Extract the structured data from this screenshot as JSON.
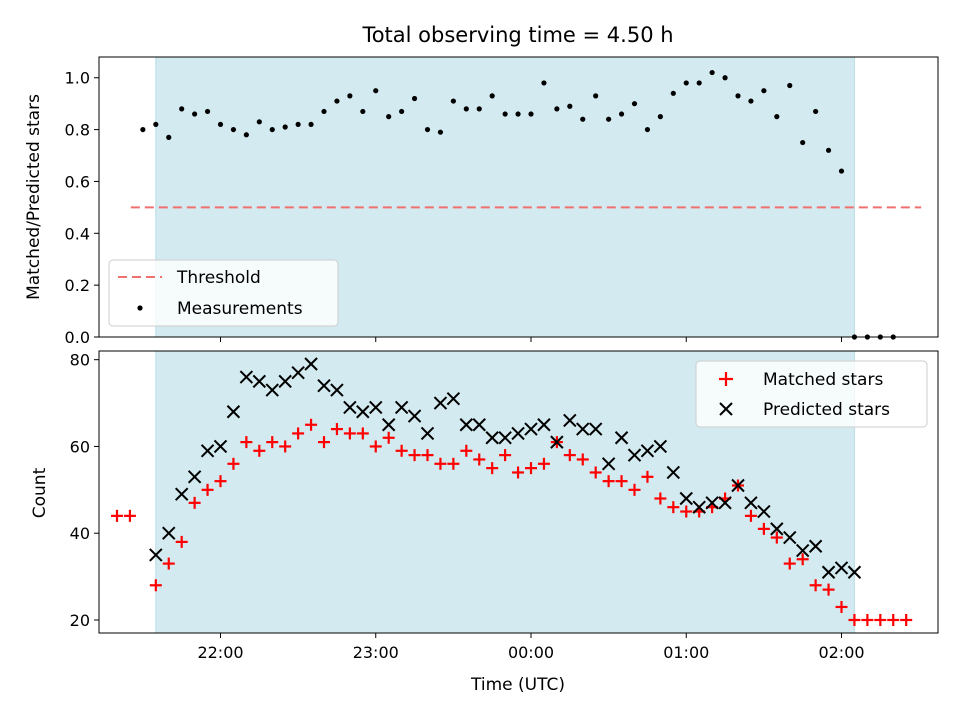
{
  "chart_data": [
    {
      "type": "scatter",
      "title": "Total observing time = 4.50 h",
      "xlabel": "",
      "ylabel": "Matched/Predicted stars",
      "ylim": [
        0,
        1.08
      ],
      "yticks": [
        0.0,
        0.2,
        0.4,
        0.6,
        0.8,
        1.0
      ],
      "yticklabels": [
        "0.0",
        "0.2",
        "0.4",
        "0.6",
        "0.8",
        "1.0"
      ],
      "shaded_span": [
        "21:35",
        "02:05"
      ],
      "threshold": {
        "name": "Threshold",
        "value": 0.5,
        "x_start": "21:35",
        "x_end": "02:25",
        "color": "#f07070"
      },
      "series": [
        {
          "name": "Measurements",
          "color": "#000000",
          "x": [
            "21:30",
            "21:35",
            "21:40",
            "21:45",
            "21:50",
            "21:55",
            "22:00",
            "22:05",
            "22:10",
            "22:15",
            "22:20",
            "22:25",
            "22:30",
            "22:35",
            "22:40",
            "22:45",
            "22:50",
            "22:55",
            "23:00",
            "23:05",
            "23:10",
            "23:15",
            "23:20",
            "23:25",
            "23:30",
            "23:35",
            "23:40",
            "23:45",
            "23:50",
            "23:55",
            "00:00",
            "00:05",
            "00:10",
            "00:15",
            "00:20",
            "00:25",
            "00:30",
            "00:35",
            "00:40",
            "00:45",
            "00:50",
            "00:55",
            "01:00",
            "01:05",
            "01:10",
            "01:15",
            "01:20",
            "01:25",
            "01:30",
            "01:35",
            "01:40",
            "01:45",
            "01:50",
            "01:55",
            "02:00",
            "02:05",
            "02:10",
            "02:15",
            "02:20"
          ],
          "values": [
            0.8,
            0.82,
            0.77,
            0.88,
            0.86,
            0.87,
            0.82,
            0.8,
            0.78,
            0.83,
            0.8,
            0.81,
            0.82,
            0.82,
            0.87,
            0.91,
            0.93,
            0.87,
            0.95,
            0.85,
            0.87,
            0.92,
            0.8,
            0.79,
            0.91,
            0.88,
            0.88,
            0.93,
            0.86,
            0.86,
            0.86,
            0.98,
            0.88,
            0.89,
            0.84,
            0.93,
            0.84,
            0.86,
            0.9,
            0.8,
            0.85,
            0.94,
            0.98,
            0.98,
            1.02,
            1.0,
            0.93,
            0.91,
            0.95,
            0.85,
            0.97,
            0.75,
            0.87,
            0.72,
            0.64,
            0.0,
            0.0,
            0.0,
            0.0
          ]
        }
      ],
      "legend": {
        "placement": "lower-left",
        "entries": [
          "Threshold",
          "Measurements"
        ]
      }
    },
    {
      "type": "scatter",
      "title": "",
      "xlabel": "Time (UTC)",
      "ylabel": "Count",
      "ylim": [
        17,
        82
      ],
      "yticks": [
        20,
        40,
        60,
        80
      ],
      "yticklabels": [
        "20",
        "40",
        "60",
        "80"
      ],
      "xticks": [
        "22:00",
        "23:00",
        "00:00",
        "01:00",
        "02:00"
      ],
      "xticklabels": [
        "22:00",
        "23:00",
        "00:00",
        "01:00",
        "02:00"
      ],
      "shaded_span": [
        "21:35",
        "02:05"
      ],
      "series": [
        {
          "name": "Matched stars",
          "marker": "plus",
          "color": "#ff0000",
          "x": [
            "21:20",
            "21:25",
            "21:35",
            "21:40",
            "21:45",
            "21:50",
            "21:55",
            "22:00",
            "22:05",
            "22:10",
            "22:15",
            "22:20",
            "22:25",
            "22:30",
            "22:35",
            "22:40",
            "22:45",
            "22:50",
            "22:55",
            "23:00",
            "23:05",
            "23:10",
            "23:15",
            "23:20",
            "23:25",
            "23:30",
            "23:35",
            "23:40",
            "23:45",
            "23:50",
            "23:55",
            "00:00",
            "00:05",
            "00:10",
            "00:15",
            "00:20",
            "00:25",
            "00:30",
            "00:35",
            "00:40",
            "00:45",
            "00:50",
            "00:55",
            "01:00",
            "01:05",
            "01:10",
            "01:15",
            "01:20",
            "01:25",
            "01:30",
            "01:35",
            "01:40",
            "01:45",
            "01:50",
            "01:55",
            "02:00",
            "02:05",
            "02:10",
            "02:15",
            "02:20",
            "02:25"
          ],
          "values": [
            44,
            44,
            28,
            33,
            38,
            47,
            50,
            52,
            56,
            61,
            59,
            61,
            60,
            63,
            65,
            61,
            64,
            63,
            63,
            60,
            62,
            59,
            58,
            58,
            56,
            56,
            59,
            57,
            55,
            58,
            54,
            55,
            56,
            61,
            58,
            57,
            54,
            52,
            52,
            50,
            53,
            48,
            46,
            45,
            45,
            46,
            48,
            51,
            44,
            41,
            39,
            33,
            34,
            28,
            27,
            23,
            20,
            20,
            20,
            20,
            20
          ]
        },
        {
          "name": "Predicted stars",
          "marker": "x",
          "color": "#000000",
          "x": [
            "21:35",
            "21:40",
            "21:45",
            "21:50",
            "21:55",
            "22:00",
            "22:05",
            "22:10",
            "22:15",
            "22:20",
            "22:25",
            "22:30",
            "22:35",
            "22:40",
            "22:45",
            "22:50",
            "22:55",
            "23:00",
            "23:05",
            "23:10",
            "23:15",
            "23:20",
            "23:25",
            "23:30",
            "23:35",
            "23:40",
            "23:45",
            "23:50",
            "23:55",
            "00:00",
            "00:05",
            "00:10",
            "00:15",
            "00:20",
            "00:25",
            "00:30",
            "00:35",
            "00:40",
            "00:45",
            "00:50",
            "00:55",
            "01:00",
            "01:05",
            "01:10",
            "01:15",
            "01:20",
            "01:25",
            "01:30",
            "01:35",
            "01:40",
            "01:45",
            "01:50",
            "01:55",
            "02:00",
            "02:05"
          ],
          "values": [
            35,
            40,
            49,
            53,
            59,
            60,
            68,
            76,
            75,
            73,
            75,
            77,
            79,
            74,
            73,
            69,
            68,
            69,
            65,
            69,
            67,
            63,
            70,
            71,
            65,
            65,
            62,
            62,
            63,
            64,
            65,
            61,
            66,
            64,
            64,
            56,
            62,
            58,
            59,
            60,
            54,
            48,
            46,
            47,
            47,
            51,
            47,
            45,
            41,
            39,
            36,
            37,
            31,
            32,
            31
          ]
        }
      ],
      "legend": {
        "placement": "upper-right",
        "entries": [
          "Matched stars",
          "Predicted stars"
        ]
      }
    }
  ]
}
